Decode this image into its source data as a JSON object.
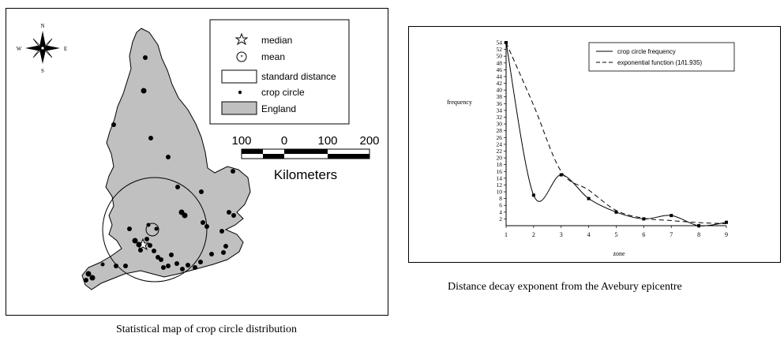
{
  "map": {
    "caption": "Statistical map of crop circle distribution",
    "compass": {
      "n": "N",
      "s": "S",
      "e": "E",
      "w": "W"
    },
    "legend": [
      {
        "symbol": "star",
        "label": "median"
      },
      {
        "symbol": "mean-circle",
        "label": "mean"
      },
      {
        "symbol": "rect-outline",
        "label": "standard distance"
      },
      {
        "symbol": "dot",
        "label": "crop circle"
      },
      {
        "symbol": "rect-fill",
        "label": "England"
      }
    ],
    "scale_bar": {
      "ticks": [
        "100",
        "0",
        "100",
        "200"
      ],
      "unit": "Kilometers"
    },
    "colors": {
      "england": "#c0c0c0",
      "dots": "#000000"
    }
  },
  "chart_data": {
    "type": "line",
    "caption": "Distance decay exponent from the Avebury epicentre",
    "xlabel": "zone",
    "ylabel": "frequency",
    "x": [
      1,
      2,
      3,
      4,
      5,
      6,
      7,
      8,
      9
    ],
    "xlim": [
      1,
      9
    ],
    "ylim": [
      0,
      54
    ],
    "y_ticks": [
      2,
      4,
      6,
      8,
      10,
      12,
      14,
      16,
      18,
      20,
      22,
      24,
      26,
      28,
      30,
      32,
      34,
      36,
      38,
      40,
      42,
      44,
      46,
      48,
      50,
      52,
      54
    ],
    "series": [
      {
        "name": "crop circle frequency",
        "style": "solid",
        "values": [
          54,
          9,
          15,
          8,
          4,
          2,
          3,
          0,
          1
        ]
      },
      {
        "name": "exponential function (1/l1.935)",
        "style": "dashed",
        "values": [
          54,
          35.5,
          16,
          10.5,
          4.5,
          2.2,
          1.5,
          0.9,
          0.6
        ]
      }
    ],
    "legend_position": "top-right",
    "grid": false
  }
}
